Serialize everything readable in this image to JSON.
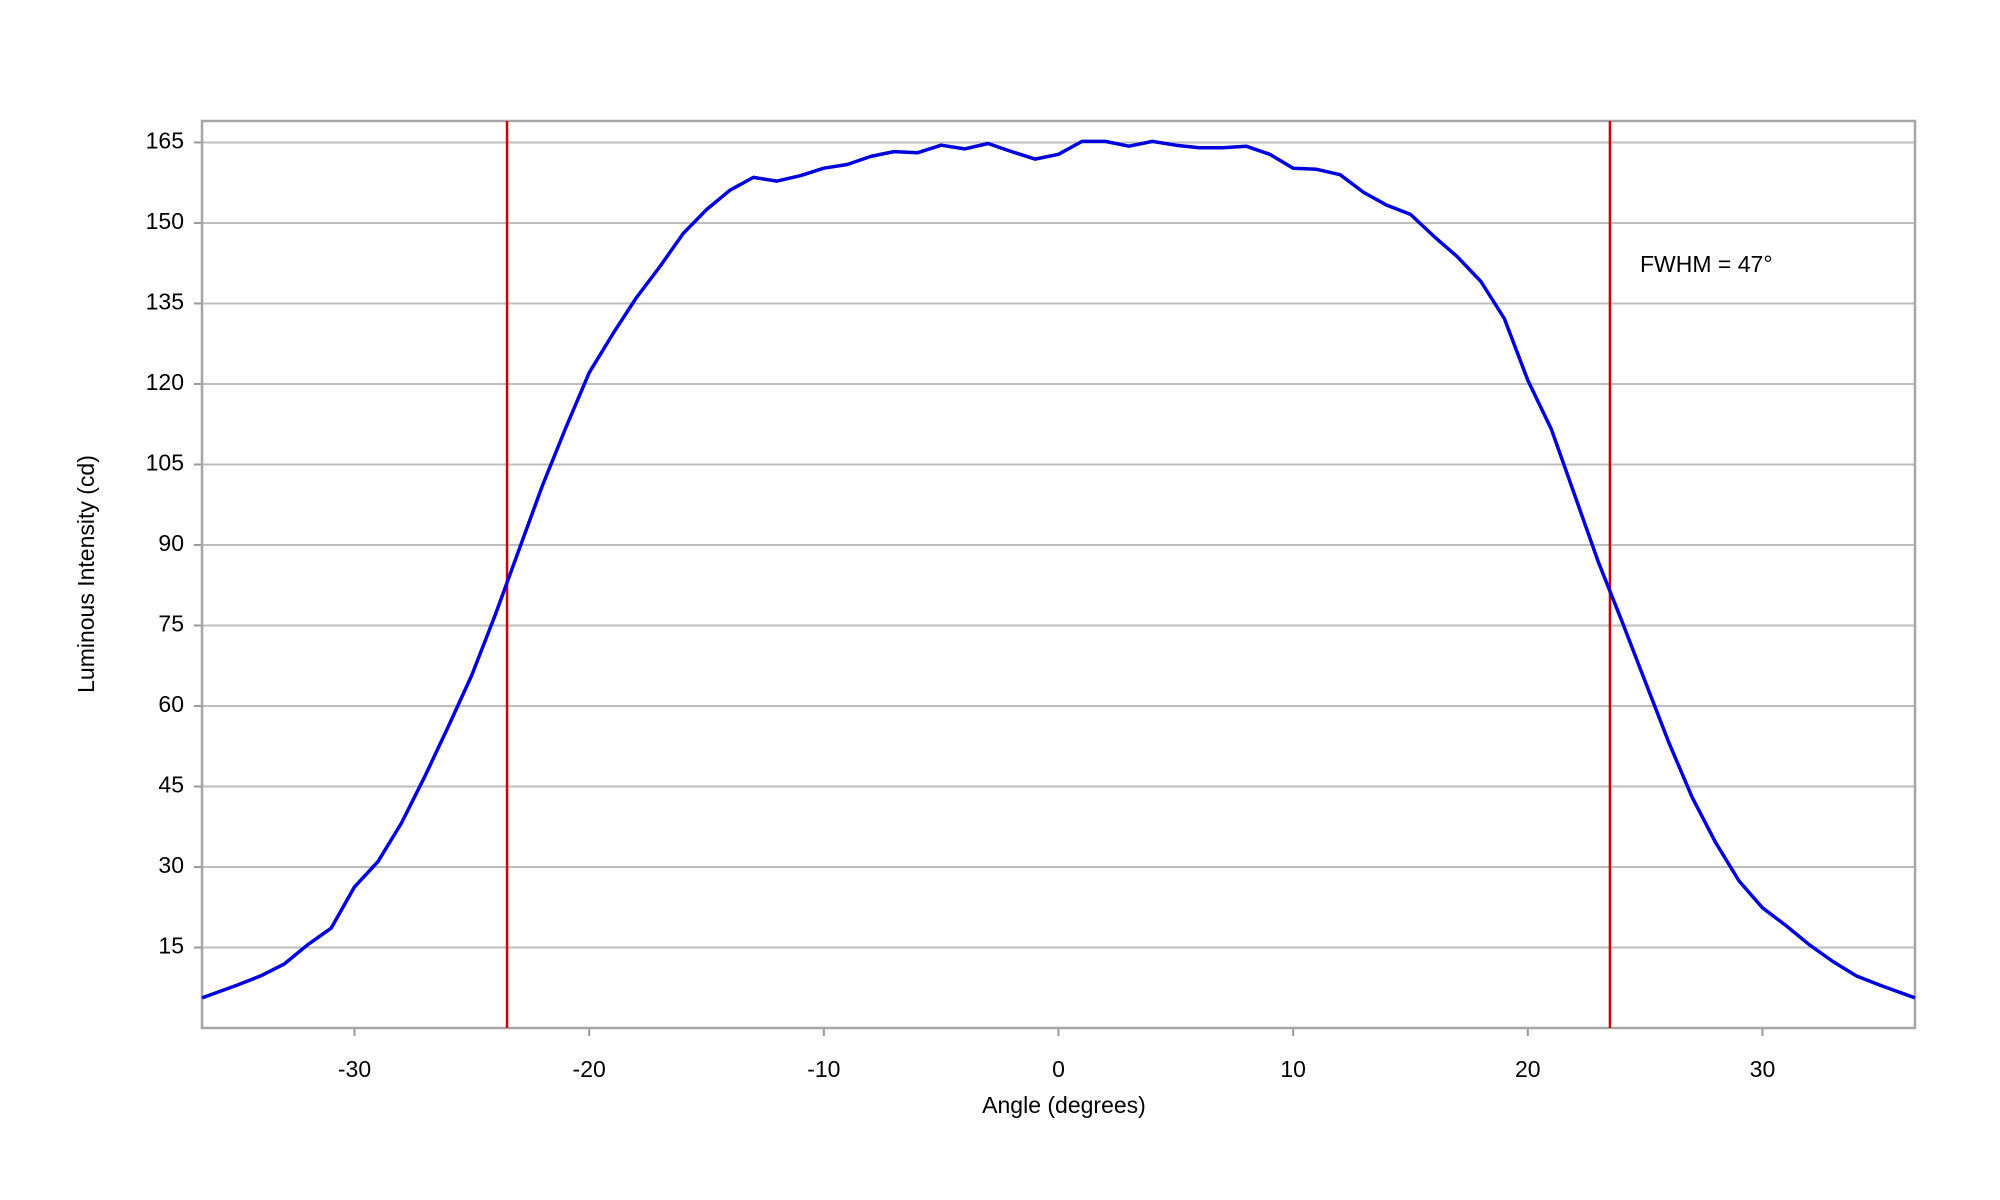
{
  "chart_data": {
    "type": "line",
    "xlabel": "Angle (degrees)",
    "ylabel": "Luminous Intensity (cd)",
    "annotation": "FWHM = 47°",
    "x": [
      -36.5,
      -35,
      -34,
      -33,
      -32,
      -31,
      -30,
      -29,
      -28,
      -27,
      -26,
      -25,
      -24,
      -23,
      -22,
      -21,
      -20,
      -19,
      -18,
      -17,
      -16,
      -15,
      -14,
      -13,
      -12,
      -11,
      -10,
      -9,
      -8,
      -7,
      -6,
      -5,
      -4,
      -3,
      -2,
      -1,
      0,
      1,
      2,
      3,
      4,
      5,
      6,
      7,
      8,
      9,
      10,
      11,
      12,
      13,
      14,
      15,
      16,
      17,
      18,
      19,
      20,
      21,
      22,
      23,
      24,
      25,
      26,
      27,
      28,
      29,
      30,
      31,
      32,
      33,
      34,
      35,
      36.5
    ],
    "series": [
      {
        "color": "#0000dd",
        "values": [
          5.6,
          8.0,
          9.7,
          11.9,
          15.5,
          18.6,
          26.3,
          31.0,
          38.2,
          46.9,
          56.2,
          65.8,
          77.0,
          89.0,
          101.0,
          111.8,
          122.1,
          129.3,
          136.0,
          141.8,
          148.0,
          152.5,
          156.1,
          158.5,
          157.8,
          158.8,
          160.2,
          160.9,
          162.4,
          163.3,
          163.1,
          164.5,
          163.8,
          164.8,
          163.3,
          161.9,
          162.8,
          165.2,
          165.2,
          164.3,
          165.2,
          164.5,
          164.0,
          164.0,
          164.3,
          162.8,
          160.2,
          160.0,
          159.0,
          155.7,
          153.3,
          151.6,
          147.5,
          143.7,
          139.1,
          132.2,
          120.7,
          111.6,
          99.3,
          86.9,
          75.9,
          64.6,
          53.3,
          43.0,
          34.6,
          27.4,
          22.4,
          19.1,
          15.5,
          12.4,
          9.7,
          8.0,
          5.6
        ]
      }
    ],
    "vlines": {
      "color": "#cc0000",
      "values": [
        -23.5,
        23.5
      ]
    },
    "xlim": [
      -36.5,
      36.5
    ],
    "xticks": [
      -30,
      -20,
      -10,
      0,
      10,
      20,
      30
    ],
    "ylim": [
      0,
      169
    ],
    "yticks": [
      15,
      30,
      45,
      60,
      75,
      90,
      105,
      120,
      135,
      150,
      165
    ],
    "grid": true
  }
}
